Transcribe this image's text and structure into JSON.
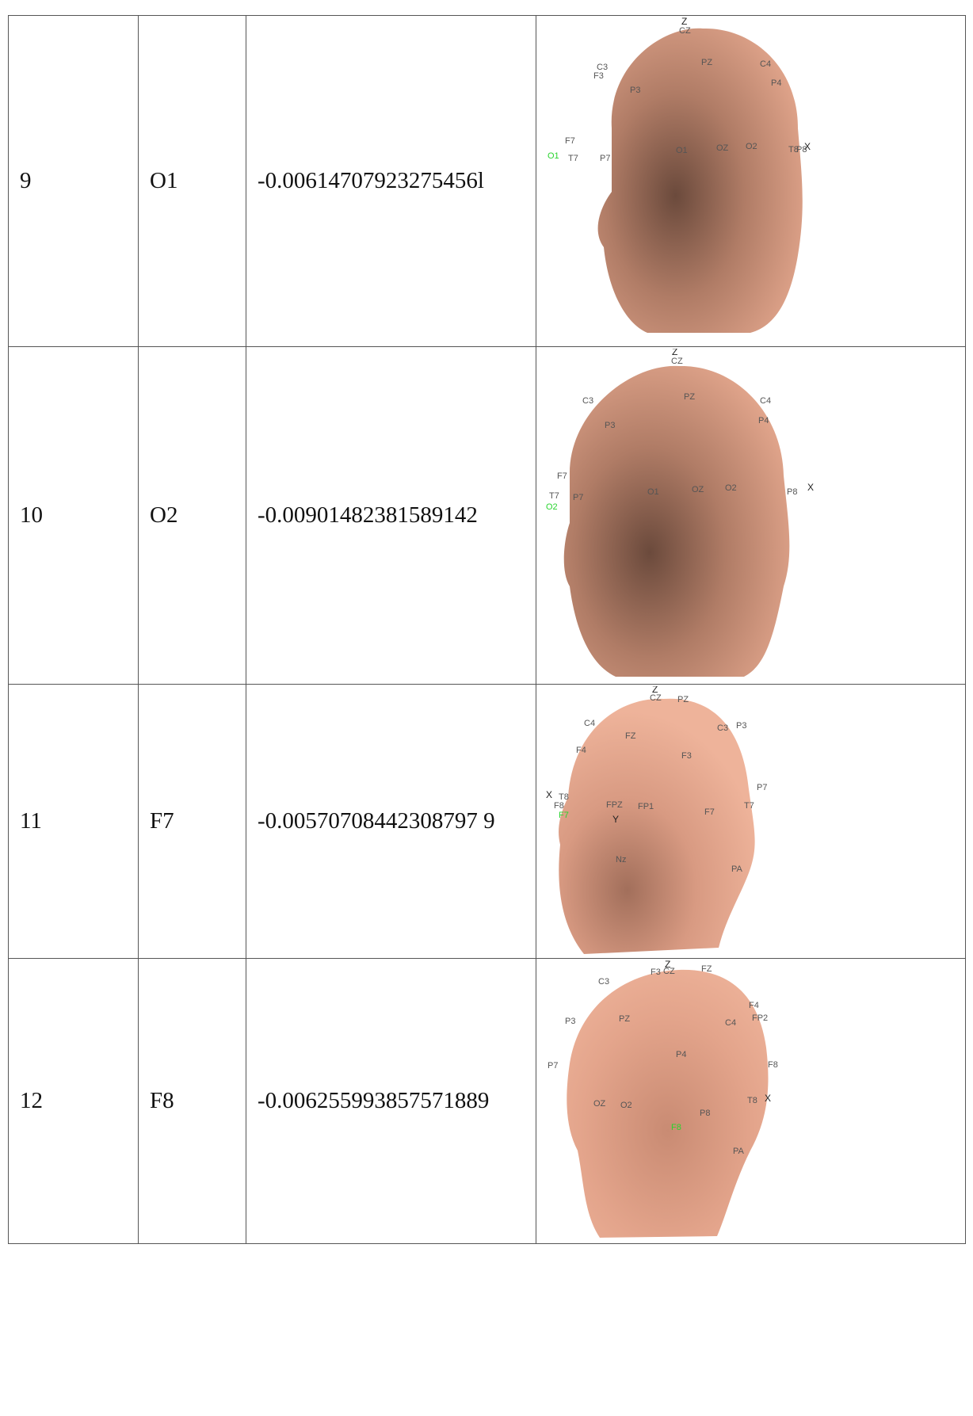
{
  "rows": [
    {
      "index": "9",
      "channel": "O1",
      "value": "-0.00614707923275456l",
      "highlight": "O1",
      "labels": [
        "Z",
        "CZ",
        "PZ",
        "C4",
        "C3",
        "F3",
        "P4",
        "P3",
        "F7",
        "O1",
        "T7",
        "P7",
        "O1",
        "OZ",
        "O2",
        "T8",
        "P8",
        "X"
      ]
    },
    {
      "index": "10",
      "channel": "O2",
      "value": "-0.00901482381589142",
      "highlight": "O2",
      "labels": [
        "Z",
        "CZ",
        "PZ",
        "C3",
        "C4",
        "P4",
        "P3",
        "F7",
        "T7",
        "O2",
        "P7",
        "O1",
        "OZ",
        "O2",
        "P8",
        "X"
      ]
    },
    {
      "index": "11",
      "channel": "F7",
      "value": "-0.00570708442308797 9",
      "highlight": "F7",
      "labels": [
        "Z",
        "CZ",
        "PZ",
        "C4",
        "C3",
        "P3",
        "FZ",
        "F4",
        "F3",
        "P7",
        "X",
        "T8",
        "F8",
        "FPZ",
        "FP1",
        "F7",
        "T7",
        "F7",
        "Y",
        "Nz",
        "PA"
      ]
    },
    {
      "index": "12",
      "channel": "F8",
      "value": "-0.006255993857571889",
      "highlight": "F8",
      "labels": [
        "Z",
        "F3",
        "CZ",
        "FZ",
        "C3",
        "F4",
        "FP2",
        "P3",
        "PZ",
        "C4",
        "P4",
        "P7",
        "F8",
        "OZ",
        "O2",
        "T8",
        "X",
        "P8",
        "F8",
        "PA"
      ]
    }
  ],
  "colors": {
    "skin": "#e9a78e",
    "skin_dark": "#7a5a4c",
    "grid": "#555555",
    "highlight": "#29d42e"
  }
}
